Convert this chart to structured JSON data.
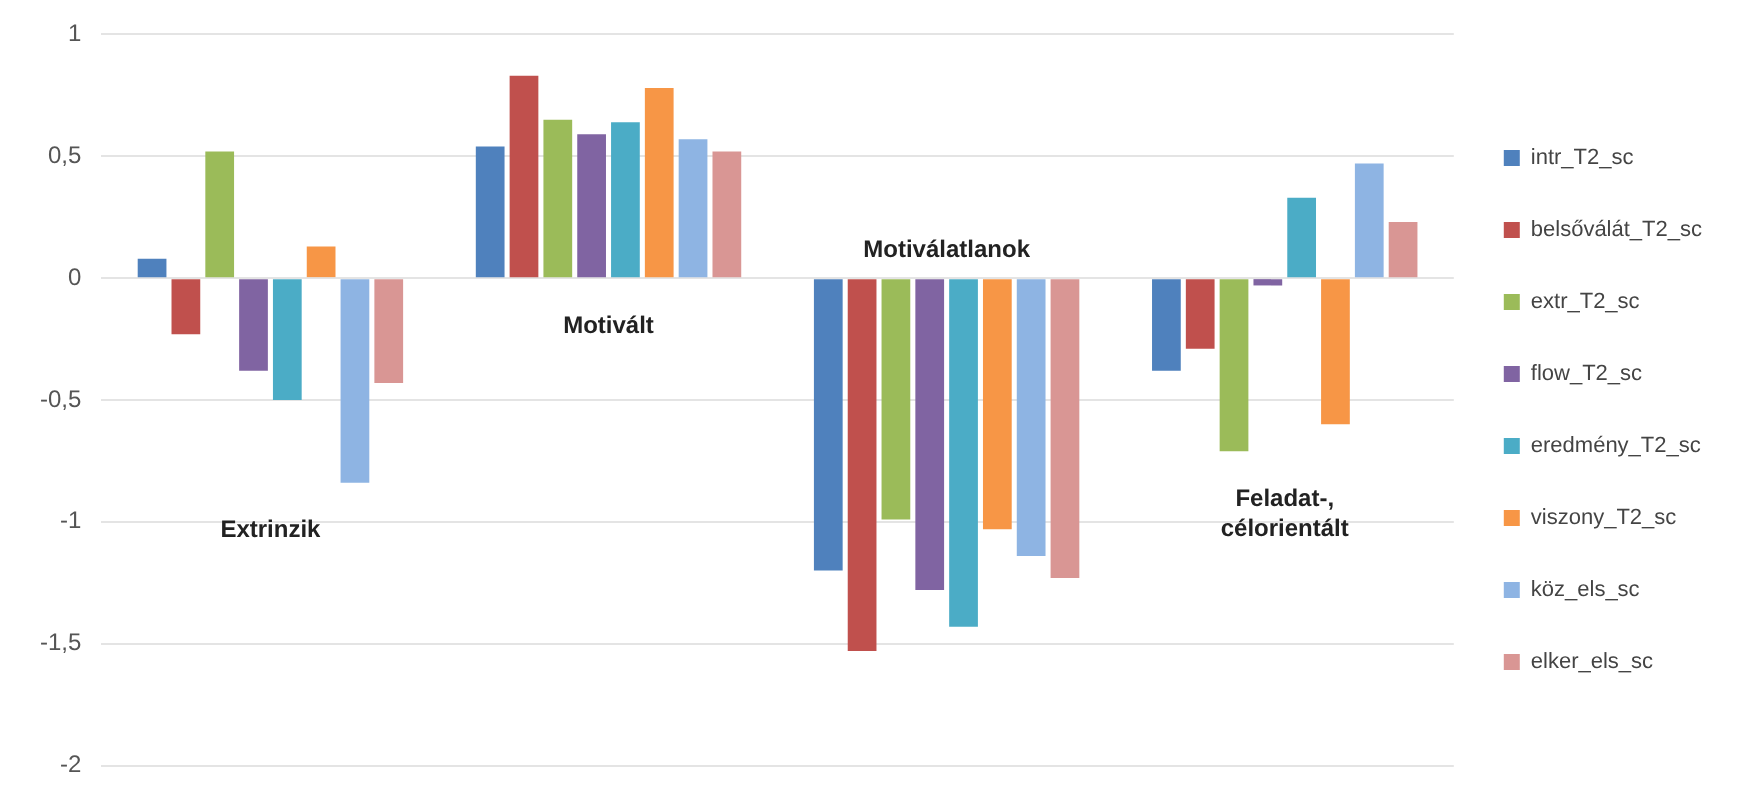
{
  "chart_data": {
    "type": "bar",
    "categories": [
      "Extrinzik",
      "Motivált",
      "Motiválatlanok",
      "Feladat-, célorientált"
    ],
    "series": [
      {
        "name": "intr_T2_sc",
        "color": "#4f81bd",
        "values": [
          0.08,
          0.54,
          -1.2,
          -0.38
        ]
      },
      {
        "name": "belsőválát_T2_sc",
        "color": "#c0504d",
        "values": [
          -0.23,
          0.83,
          -1.53,
          -0.29
        ]
      },
      {
        "name": "extr_T2_sc",
        "color": "#9bbb59",
        "values": [
          0.52,
          0.65,
          -0.99,
          -0.71
        ]
      },
      {
        "name": "flow_T2_sc",
        "color": "#8064a2",
        "values": [
          -0.38,
          0.59,
          -1.28,
          -0.03
        ]
      },
      {
        "name": "eredmény_T2_sc",
        "color": "#4bacc6",
        "values": [
          -0.5,
          0.64,
          -1.43,
          0.33
        ]
      },
      {
        "name": "viszony_T2_sc",
        "color": "#f79646",
        "values": [
          0.13,
          0.78,
          -1.03,
          -0.6
        ]
      },
      {
        "name": "köz_els_sc",
        "color": "#8eb4e3",
        "values": [
          -0.84,
          0.57,
          -1.14,
          0.47
        ]
      },
      {
        "name": "elker_els_sc",
        "color": "#d99694",
        "values": [
          -0.43,
          0.52,
          -1.23,
          0.23
        ]
      }
    ],
    "ylim": [
      -2,
      1
    ],
    "yticks": [
      {
        "value": -2,
        "label": "-2"
      },
      {
        "value": -1.5,
        "label": "-1,5"
      },
      {
        "value": -1,
        "label": "-1"
      },
      {
        "value": -0.5,
        "label": "-0,5"
      },
      {
        "value": 0,
        "label": "0"
      },
      {
        "value": 0.5,
        "label": "0,5"
      },
      {
        "value": 1,
        "label": "1"
      }
    ],
    "grid": "y",
    "legend": "right"
  }
}
